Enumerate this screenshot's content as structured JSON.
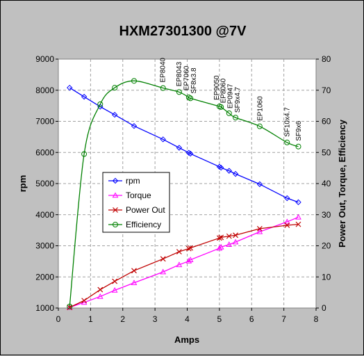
{
  "chart_data": {
    "type": "line",
    "title": "HXM27301300 @7V",
    "xlabel": "Amps",
    "ylabel_left": "rpm",
    "ylabel_right": "Power Out, Torque, Efficiency",
    "xlim": [
      0,
      8
    ],
    "ylim_left": [
      1000,
      9000
    ],
    "ylim_right": [
      0,
      80
    ],
    "x_ticks": [
      0,
      1,
      2,
      3,
      4,
      5,
      6,
      7,
      8
    ],
    "y_left_ticks": [
      1000,
      2000,
      3000,
      4000,
      5000,
      6000,
      7000,
      8000,
      9000
    ],
    "y_right_ticks": [
      0,
      10,
      20,
      30,
      40,
      50,
      60,
      70,
      80
    ],
    "grid": true,
    "legend_position": "center-left",
    "series": [
      {
        "name": "rpm",
        "axis": "left",
        "color": "#0000ff",
        "marker": "diamond",
        "x": [
          0.35,
          0.8,
          1.3,
          1.75,
          2.35,
          3.25,
          3.75,
          4.05,
          4.1,
          5.0,
          5.05,
          5.3,
          5.5,
          6.25,
          7.1,
          7.45
        ],
        "y": [
          8080,
          7790,
          7470,
          7210,
          6850,
          6420,
          6150,
          5990,
          5960,
          5540,
          5510,
          5410,
          5310,
          4980,
          4530,
          4400
        ]
      },
      {
        "name": "Torque",
        "axis": "right",
        "color": "#ff00ff",
        "marker": "triangle",
        "x": [
          0.35,
          0.8,
          1.3,
          1.75,
          2.35,
          3.25,
          3.75,
          4.05,
          4.1,
          5.0,
          5.05,
          5.3,
          5.5,
          6.25,
          7.1,
          7.45
        ],
        "y": [
          0.2,
          1.8,
          3.7,
          5.7,
          8.1,
          11.6,
          13.9,
          15.1,
          15.5,
          19.2,
          19.6,
          20.4,
          21.2,
          24.5,
          27.7,
          29.2
        ]
      },
      {
        "name": "Power Out",
        "axis": "right",
        "color": "#c00000",
        "marker": "x",
        "x": [
          0.35,
          0.8,
          1.3,
          1.75,
          2.35,
          3.25,
          3.75,
          4.05,
          4.1,
          5.0,
          5.05,
          5.3,
          5.5,
          6.25,
          7.1,
          7.45
        ],
        "y": [
          0.2,
          2.4,
          5.9,
          8.6,
          12.0,
          15.8,
          18.1,
          19.1,
          19.3,
          22.5,
          22.7,
          23.1,
          23.4,
          25.5,
          26.6,
          26.9
        ]
      },
      {
        "name": "Efficiency",
        "axis": "right",
        "color": "#008000",
        "marker": "circle",
        "x": [
          0.35,
          0.8,
          1.3,
          1.75,
          2.35,
          3.25,
          3.75,
          4.05,
          4.1,
          5.0,
          5.05,
          5.3,
          5.5,
          6.25,
          7.1,
          7.45
        ],
        "y": [
          0.5,
          49.5,
          65.5,
          70.8,
          73.0,
          70.7,
          69.4,
          67.7,
          67.4,
          64.8,
          64.6,
          62.6,
          61.2,
          58.4,
          53.2,
          51.9
        ]
      }
    ],
    "annotations": [
      {
        "text": "EP8040",
        "x": 3.25
      },
      {
        "text": "EP8043",
        "x": 3.75
      },
      {
        "text": "EP7060",
        "x": 3.98
      },
      {
        "text": "SF8x3.8",
        "x": 4.2
      },
      {
        "text": "EP9050",
        "x": 4.92
      },
      {
        "text": "EP8060",
        "x": 5.12
      },
      {
        "text": "EP0947",
        "x": 5.34
      },
      {
        "text": "SF9x4.7",
        "x": 5.56
      },
      {
        "text": "EP1060",
        "x": 6.26
      },
      {
        "text": "SF10x4.7",
        "x": 7.1
      },
      {
        "text": "SF9x6",
        "x": 7.46
      }
    ]
  }
}
